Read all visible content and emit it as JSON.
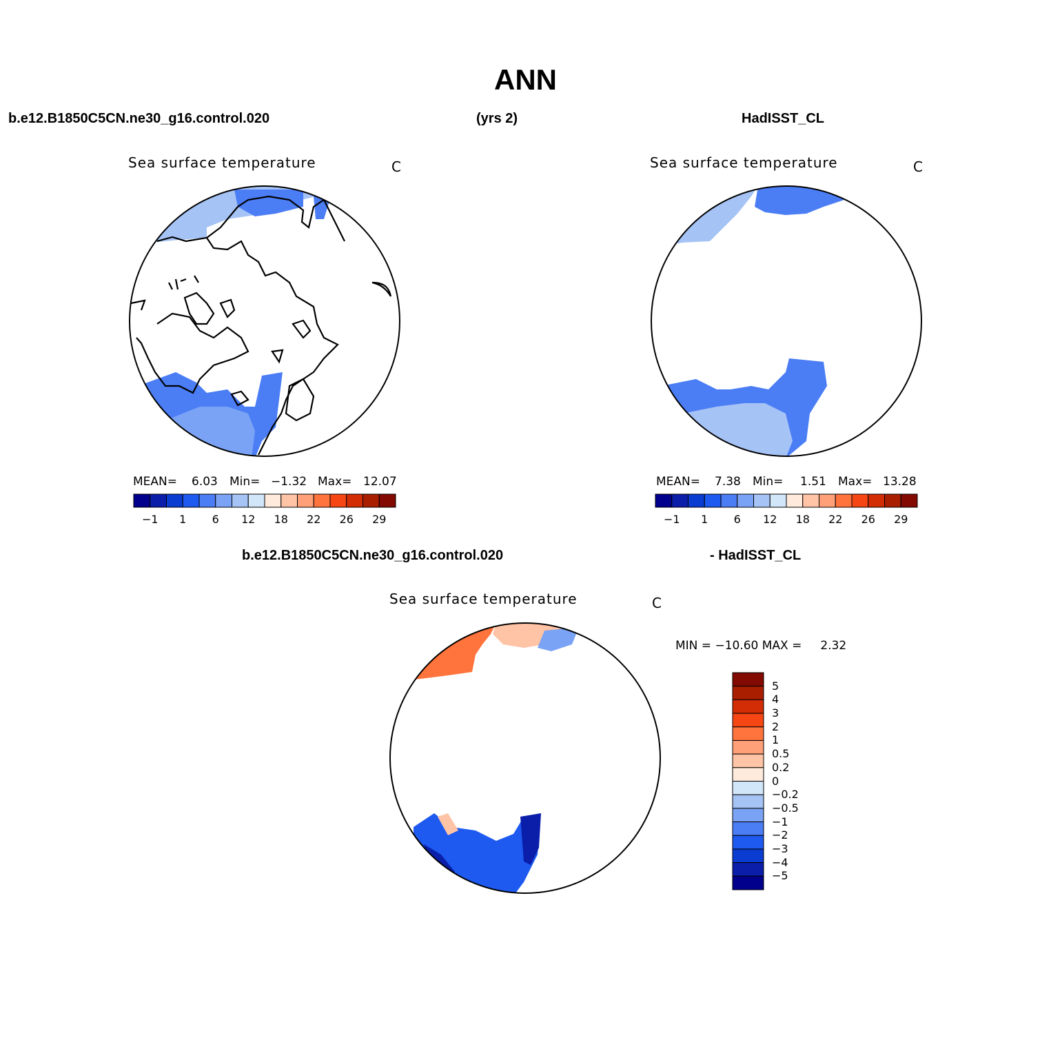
{
  "title": "ANN",
  "header": {
    "case_name": "b.e12.B1850C5CN.ne30_g16.control.020",
    "years": "(yrs 2)",
    "obs_name": "HadISST_CL"
  },
  "diff_header": {
    "case_name": "b.e12.B1850C5CN.ne30_g16.control.020",
    "obs_label": "- HadISST_CL"
  },
  "panels": {
    "model": {
      "title": "Sea surface temperature",
      "units": "C",
      "mean_label": "MEAN=",
      "mean": "6.03",
      "min_label": "Min=",
      "min": "−1.32",
      "max_label": "Max=",
      "max": "12.07"
    },
    "obs": {
      "title": "Sea surface temperature",
      "units": "C",
      "mean_label": "MEAN=",
      "mean": "7.38",
      "min_label": "Min=",
      "min": "1.51",
      "max_label": "Max=",
      "max": "13.28"
    },
    "diff": {
      "title": "Sea surface temperature",
      "units": "C",
      "minmax_text": "MIN = −10.60 MAX =     2.32"
    }
  },
  "colorbar_abs": {
    "colors": [
      "#00008c",
      "#0a1eaa",
      "#0a3cd2",
      "#1e5af0",
      "#4b7df5",
      "#7ba3f5",
      "#a5c3f5",
      "#d2e6fa",
      "#ffeadc",
      "#ffc3a5",
      "#ffa078",
      "#ff733c",
      "#f54614",
      "#d22d05",
      "#aa1e00",
      "#820a00"
    ],
    "ticks": [
      "−1",
      "1",
      "6",
      "12",
      "18",
      "22",
      "26",
      "29"
    ]
  },
  "colorbar_diff": {
    "colors": [
      "#820a00",
      "#aa1e00",
      "#d22d05",
      "#f54614",
      "#ff733c",
      "#ffa078",
      "#ffc3a5",
      "#ffeadc",
      "#d2e6fa",
      "#a5c3f5",
      "#7ba3f5",
      "#4b7df5",
      "#1e5af0",
      "#0a3cd2",
      "#0a1eaa",
      "#00008c"
    ],
    "ticks": [
      "5",
      "4",
      "3",
      "2",
      "1",
      "0.5",
      "0.2",
      "0",
      "−0.2",
      "−0.5",
      "−1",
      "−2",
      "−3",
      "−4",
      "−5"
    ]
  },
  "map_colors": {
    "pacific_model": "#a5c3f5",
    "pacific_model_mid": "#7ba3f5",
    "bering_model": "#4b7df5",
    "atlantic_model": "#4b7df5",
    "atlantic_model_south": "#7ba3f5",
    "atlantic_obs": "#4b7df5",
    "atlantic_obs_south": "#a5c3f5",
    "diff_pacific": "#ff733c",
    "diff_pacific_light": "#ffc3a5",
    "diff_atlantic": "#1e5af0",
    "diff_atlantic_dark": "#0a1eaa",
    "land_outline": "#000000"
  }
}
